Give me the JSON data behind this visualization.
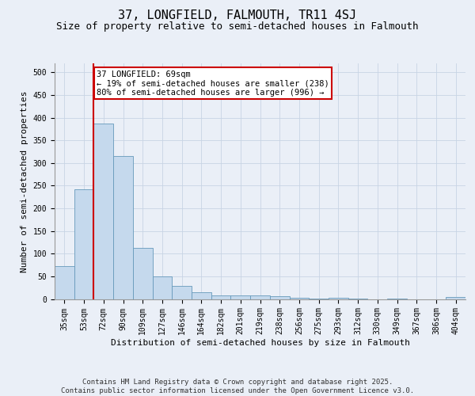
{
  "title": "37, LONGFIELD, FALMOUTH, TR11 4SJ",
  "subtitle": "Size of property relative to semi-detached houses in Falmouth",
  "xlabel": "Distribution of semi-detached houses by size in Falmouth",
  "ylabel": "Number of semi-detached properties",
  "categories": [
    "35sqm",
    "53sqm",
    "72sqm",
    "90sqm",
    "109sqm",
    "127sqm",
    "146sqm",
    "164sqm",
    "182sqm",
    "201sqm",
    "219sqm",
    "238sqm",
    "256sqm",
    "275sqm",
    "293sqm",
    "312sqm",
    "330sqm",
    "349sqm",
    "367sqm",
    "386sqm",
    "404sqm"
  ],
  "values": [
    73,
    242,
    387,
    315,
    113,
    50,
    29,
    14,
    7,
    7,
    7,
    6,
    2,
    1,
    2,
    1,
    0,
    1,
    0,
    0,
    4
  ],
  "bar_color": "#c5d9ed",
  "bar_edge_color": "#6699bb",
  "annotation_text": "37 LONGFIELD: 69sqm\n← 19% of semi-detached houses are smaller (238)\n80% of semi-detached houses are larger (996) →",
  "annotation_box_color": "#ffffff",
  "annotation_box_edge": "#cc0000",
  "vline_color": "#cc0000",
  "vline_x": 1.5,
  "footer": "Contains HM Land Registry data © Crown copyright and database right 2025.\nContains public sector information licensed under the Open Government Licence v3.0.",
  "ylim": [
    0,
    520
  ],
  "yticks": [
    0,
    50,
    100,
    150,
    200,
    250,
    300,
    350,
    400,
    450,
    500
  ],
  "grid_color": "#c8d4e4",
  "bg_color": "#eaeff7",
  "title_fontsize": 11,
  "subtitle_fontsize": 9,
  "axis_label_fontsize": 8,
  "tick_fontsize": 7,
  "footer_fontsize": 6.5,
  "annotation_fontsize": 7.5
}
